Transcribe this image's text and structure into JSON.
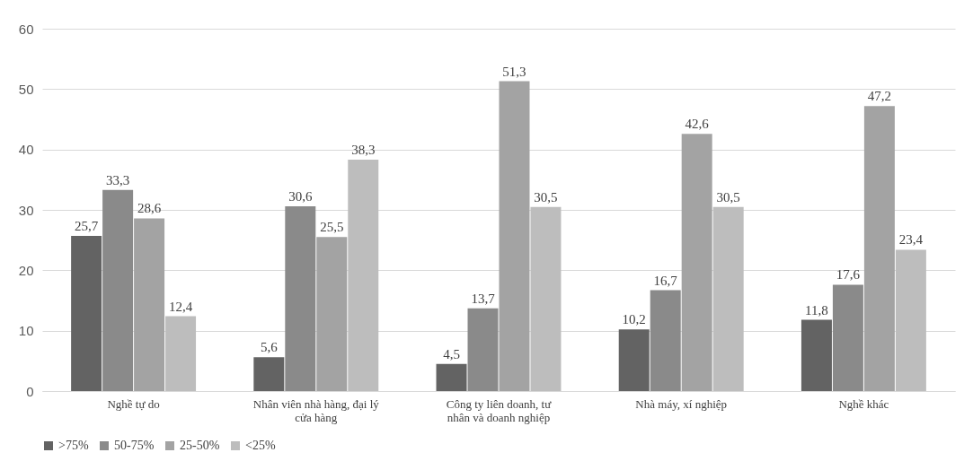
{
  "chart_data": {
    "type": "bar",
    "categories": [
      "Nghề tự do",
      "Nhân viên nhà hàng, đại lý cửa hàng",
      "Công ty liên doanh, tư nhân và doanh nghiệp",
      "Nhà máy, xí nghiệp",
      "Nghề khác"
    ],
    "series": [
      {
        "name": ">75%",
        "color": "#636363",
        "values": [
          25.7,
          5.6,
          4.5,
          10.2,
          11.8
        ],
        "value_labels": [
          "25,7",
          "5,6",
          "4,5",
          "10,2",
          "11,8"
        ]
      },
      {
        "name": "50-75%",
        "color": "#8a8a8a",
        "values": [
          33.3,
          30.6,
          13.7,
          16.7,
          17.6
        ],
        "value_labels": [
          "33,3",
          "30,6",
          "13,7",
          "16,7",
          "17,6"
        ]
      },
      {
        "name": "25-50%",
        "color": "#a3a3a3",
        "values": [
          28.6,
          25.5,
          51.3,
          42.6,
          47.2
        ],
        "value_labels": [
          "28,6",
          "25,5",
          "51,3",
          "42,6",
          "47,2"
        ]
      },
      {
        "name": "<25%",
        "color": "#bdbdbd",
        "values": [
          12.4,
          38.3,
          30.5,
          30.5,
          23.4
        ],
        "value_labels": [
          "12,4",
          "38,3",
          "30,5",
          "30,5",
          "23,4"
        ]
      }
    ],
    "ylim": [
      0,
      60
    ],
    "yticks": [
      0,
      10,
      20,
      30,
      40,
      50,
      60
    ],
    "grid": "y",
    "legend": "bottom"
  }
}
